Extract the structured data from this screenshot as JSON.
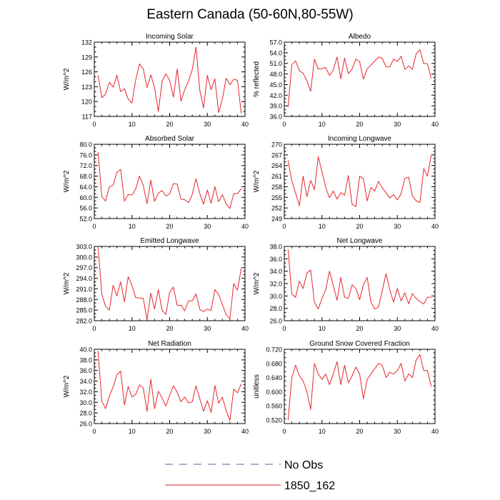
{
  "title": "Eastern Canada (50-60N,80-55W)",
  "legend": {
    "items": [
      {
        "label": "No Obs",
        "color": "#5a5aa0",
        "dashed": true
      },
      {
        "label": "1850_162",
        "color": "#e8252a",
        "dashed": false
      }
    ]
  },
  "chart_data": [
    {
      "type": "line",
      "title": "Incoming Solar",
      "ylabel": "W/m^2",
      "xlim": [
        0,
        40
      ],
      "ylim": [
        117,
        132
      ],
      "xticks": [
        "0",
        "10",
        "20",
        "30",
        "40"
      ],
      "yticks": [
        "117",
        "120",
        "123",
        "126",
        "129",
        "132"
      ],
      "x": [
        1,
        2,
        3,
        4,
        5,
        6,
        7,
        8,
        9,
        10,
        11,
        12,
        13,
        14,
        15,
        16,
        17,
        18,
        19,
        20,
        21,
        22,
        23,
        24,
        25,
        26,
        27,
        28,
        29,
        30,
        31,
        32,
        33,
        34,
        35,
        36,
        37,
        38,
        39
      ],
      "series": [
        {
          "name": "1850_162",
          "values": [
            125.3,
            120.8,
            121.5,
            123.9,
            122.9,
            125.3,
            122.0,
            122.6,
            120.5,
            119.7,
            124.4,
            127.6,
            126.6,
            122.8,
            125.4,
            122.8,
            118.0,
            124.1,
            125.6,
            124.3,
            120.9,
            126.6,
            120.1,
            122.4,
            124.1,
            126.4,
            131.0,
            122.3,
            118.7,
            125.3,
            122.4,
            124.6,
            117.8,
            120.5,
            124.7,
            123.4,
            124.5,
            124.3,
            117.6
          ]
        }
      ]
    },
    {
      "type": "line",
      "title": "Albedo",
      "ylabel": "% reflected",
      "xlim": [
        0,
        40
      ],
      "ylim": [
        36,
        57
      ],
      "xticks": [
        "0",
        "10",
        "20",
        "30",
        "40"
      ],
      "yticks": [
        "36.0",
        "39.0",
        "42.0",
        "45.0",
        "48.0",
        "51.0",
        "54.0",
        "57.0"
      ],
      "x": [
        1,
        2,
        3,
        4,
        5,
        6,
        7,
        8,
        9,
        10,
        11,
        12,
        13,
        14,
        15,
        16,
        17,
        18,
        19,
        20,
        21,
        22,
        23,
        24,
        25,
        26,
        27,
        28,
        29,
        30,
        31,
        32,
        33,
        34,
        35,
        36,
        37,
        38,
        39
      ],
      "series": [
        {
          "name": "1850_162",
          "values": [
            38.6,
            50.6,
            51.7,
            48.9,
            48.2,
            46.1,
            43.1,
            52.2,
            49.4,
            49.5,
            49.8,
            47.6,
            49.1,
            52.8,
            46.6,
            52.5,
            48.1,
            49.4,
            52.2,
            51.5,
            46.5,
            49.5,
            50.5,
            51.7,
            52.8,
            52.4,
            50.0,
            50.0,
            52.2,
            51.5,
            53.0,
            49.3,
            50.3,
            49.3,
            53.7,
            54.8,
            51.0,
            50.9,
            46.8
          ]
        }
      ]
    },
    {
      "type": "line",
      "title": "Absorbed Solar",
      "ylabel": "W/m^2",
      "xlim": [
        0,
        40
      ],
      "ylim": [
        52,
        80
      ],
      "xticks": [
        "0",
        "10",
        "20",
        "30",
        "40"
      ],
      "yticks": [
        "52.0",
        "56.0",
        "60.0",
        "64.0",
        "68.0",
        "72.0",
        "76.0",
        "80.0"
      ],
      "x": [
        1,
        2,
        3,
        4,
        5,
        6,
        7,
        8,
        9,
        10,
        11,
        12,
        13,
        14,
        15,
        16,
        17,
        18,
        19,
        20,
        21,
        22,
        23,
        24,
        25,
        26,
        27,
        28,
        29,
        30,
        31,
        32,
        33,
        34,
        35,
        36,
        37,
        38,
        39
      ],
      "series": [
        {
          "name": "1850_162",
          "values": [
            77.0,
            60.3,
            58.6,
            64.0,
            64.6,
            69.4,
            70.5,
            58.6,
            61.1,
            60.9,
            63.2,
            68.0,
            64.5,
            57.6,
            66.5,
            58.5,
            61.6,
            62.6,
            60.5,
            61.3,
            65.2,
            65.0,
            59.3,
            59.1,
            58.0,
            61.1,
            67.0,
            61.5,
            57.4,
            62.8,
            57.8,
            64.0,
            58.4,
            61.0,
            57.5,
            55.8,
            61.4,
            61.4,
            63.3
          ]
        }
      ]
    },
    {
      "type": "line",
      "title": "Incoming Longwave",
      "ylabel": "W/m^2",
      "xlim": [
        0,
        40
      ],
      "ylim": [
        249,
        270
      ],
      "xticks": [
        "0",
        "10",
        "20",
        "30",
        "40"
      ],
      "yticks": [
        "249",
        "252",
        "255",
        "258",
        "261",
        "264",
        "267",
        "270"
      ],
      "x": [
        1,
        2,
        3,
        4,
        5,
        6,
        7,
        8,
        9,
        10,
        11,
        12,
        13,
        14,
        15,
        16,
        17,
        18,
        19,
        20,
        21,
        22,
        23,
        24,
        25,
        26,
        27,
        28,
        29,
        30,
        31,
        32,
        33,
        34,
        35,
        36,
        37,
        38,
        39
      ],
      "series": [
        {
          "name": "1850_162",
          "values": [
            265.4,
            259.7,
            256.2,
            252.6,
            261.0,
            255.2,
            259.8,
            257.2,
            266.5,
            262.3,
            257.8,
            254.9,
            256.8,
            254.5,
            256.3,
            255.6,
            261.2,
            253.0,
            252.4,
            261.0,
            260.3,
            254.0,
            257.8,
            256.8,
            259.5,
            257.7,
            256.3,
            254.8,
            255.8,
            254.3,
            256.0,
            260.4,
            260.7,
            255.4,
            254.0,
            253.5,
            263.1,
            261.0,
            266.9
          ]
        }
      ]
    },
    {
      "type": "line",
      "title": "Emitted Longwave",
      "ylabel": "W/m^2",
      "xlim": [
        0,
        40
      ],
      "ylim": [
        282,
        303
      ],
      "xticks": [
        "0",
        "10",
        "20",
        "30",
        "40"
      ],
      "yticks": [
        "282.0",
        "285.0",
        "288.0",
        "291.0",
        "294.0",
        "297.0",
        "300.0",
        "303.0"
      ],
      "x": [
        1,
        2,
        3,
        4,
        5,
        6,
        7,
        8,
        9,
        10,
        11,
        12,
        13,
        14,
        15,
        16,
        17,
        18,
        19,
        20,
        21,
        22,
        23,
        24,
        25,
        26,
        27,
        28,
        29,
        30,
        31,
        32,
        33,
        34,
        35,
        36,
        37,
        38,
        39
      ],
      "series": [
        {
          "name": "1850_162",
          "values": [
            302.8,
            289.5,
            286.0,
            285.0,
            292.0,
            289.0,
            293.0,
            287.3,
            294.4,
            292.0,
            288.5,
            288.4,
            288.3,
            282.3,
            289.8,
            285.3,
            290.8,
            284.9,
            283.8,
            290.0,
            291.5,
            286.3,
            286.4,
            284.8,
            287.6,
            287.6,
            289.6,
            285.2,
            284.6,
            285.3,
            284.9,
            290.8,
            289.4,
            286.6,
            283.7,
            282.6,
            292.5,
            290.6,
            296.8
          ]
        }
      ]
    },
    {
      "type": "line",
      "title": "Net Longwave",
      "ylabel": "W/m^2",
      "xlim": [
        0,
        40
      ],
      "ylim": [
        26,
        38
      ],
      "xticks": [
        "0",
        "10",
        "20",
        "30",
        "40"
      ],
      "yticks": [
        "26.0",
        "28.0",
        "30.0",
        "32.0",
        "34.0",
        "36.0",
        "38.0"
      ],
      "x": [
        1,
        2,
        3,
        4,
        5,
        6,
        7,
        8,
        9,
        10,
        11,
        12,
        13,
        14,
        15,
        16,
        17,
        18,
        19,
        20,
        21,
        22,
        23,
        24,
        25,
        26,
        27,
        28,
        29,
        30,
        31,
        32,
        33,
        34,
        35,
        36,
        37,
        38,
        39
      ],
      "series": [
        {
          "name": "1850_162",
          "values": [
            37.5,
            30.3,
            29.8,
            32.4,
            31.2,
            33.7,
            34.2,
            29.0,
            27.9,
            29.6,
            31.0,
            34.0,
            31.7,
            29.3,
            33.0,
            29.8,
            29.6,
            31.8,
            31.2,
            29.4,
            31.8,
            33.0,
            29.0,
            27.9,
            28.2,
            30.8,
            33.6,
            31.0,
            29.0,
            31.2,
            29.2,
            30.5,
            28.7,
            30.4,
            29.6,
            29.1,
            28.7,
            29.8,
            29.8
          ]
        }
      ]
    },
    {
      "type": "line",
      "title": "Net Radiation",
      "ylabel": "W/m^2",
      "xlim": [
        0,
        40
      ],
      "ylim": [
        26,
        40
      ],
      "xticks": [
        "0",
        "10",
        "20",
        "30",
        "40"
      ],
      "yticks": [
        "26.0",
        "28.0",
        "30.0",
        "32.0",
        "34.0",
        "36.0",
        "38.0",
        "40.0"
      ],
      "x": [
        1,
        2,
        3,
        4,
        5,
        6,
        7,
        8,
        9,
        10,
        11,
        12,
        13,
        14,
        15,
        16,
        17,
        18,
        19,
        20,
        21,
        22,
        23,
        24,
        25,
        26,
        27,
        28,
        29,
        30,
        31,
        32,
        33,
        34,
        35,
        36,
        37,
        38,
        39
      ],
      "series": [
        {
          "name": "1850_162",
          "values": [
            39.7,
            30.2,
            28.8,
            31.2,
            32.9,
            35.2,
            35.9,
            29.5,
            33.0,
            31.0,
            31.5,
            33.3,
            32.7,
            28.3,
            34.4,
            28.8,
            32.1,
            30.8,
            29.3,
            31.3,
            33.1,
            31.9,
            30.1,
            31.0,
            29.9,
            30.1,
            33.1,
            30.7,
            28.3,
            30.3,
            28.1,
            33.2,
            29.8,
            31.0,
            28.4,
            26.6,
            32.5,
            31.8,
            33.5
          ]
        }
      ]
    },
    {
      "type": "line",
      "title": "Ground Snow Covered Fraction",
      "ylabel": "unitless",
      "xlim": [
        0,
        40
      ],
      "ylim": [
        0.51,
        0.72
      ],
      "xticks": [
        "0",
        "10",
        "20",
        "30",
        "40"
      ],
      "yticks": [
        "0.520",
        "0.560",
        "0.600",
        "0.640",
        "0.680",
        "0.720"
      ],
      "x": [
        1,
        2,
        3,
        4,
        5,
        6,
        7,
        8,
        9,
        10,
        11,
        12,
        13,
        14,
        15,
        16,
        17,
        18,
        19,
        20,
        21,
        22,
        23,
        24,
        25,
        26,
        27,
        28,
        29,
        30,
        31,
        32,
        33,
        34,
        35,
        36,
        37,
        38,
        39
      ],
      "series": [
        {
          "name": "1850_162",
          "values": [
            0.52,
            0.64,
            0.675,
            0.645,
            0.63,
            0.6,
            0.55,
            0.68,
            0.65,
            0.635,
            0.65,
            0.62,
            0.65,
            0.685,
            0.62,
            0.675,
            0.625,
            0.645,
            0.67,
            0.65,
            0.58,
            0.635,
            0.65,
            0.665,
            0.68,
            0.675,
            0.64,
            0.655,
            0.65,
            0.66,
            0.68,
            0.63,
            0.65,
            0.64,
            0.69,
            0.705,
            0.66,
            0.66,
            0.615
          ]
        }
      ]
    }
  ]
}
